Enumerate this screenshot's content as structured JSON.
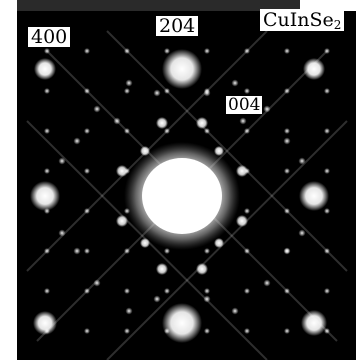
{
  "image": {
    "labels": {
      "spot_400": "400",
      "spot_204": "204",
      "spot_004": "004",
      "material_base": "CuInSe",
      "material_subscript": "2"
    },
    "colors": {
      "background": "#000000",
      "spot": "#ffffff",
      "label_bg": "#ffffff"
    }
  }
}
